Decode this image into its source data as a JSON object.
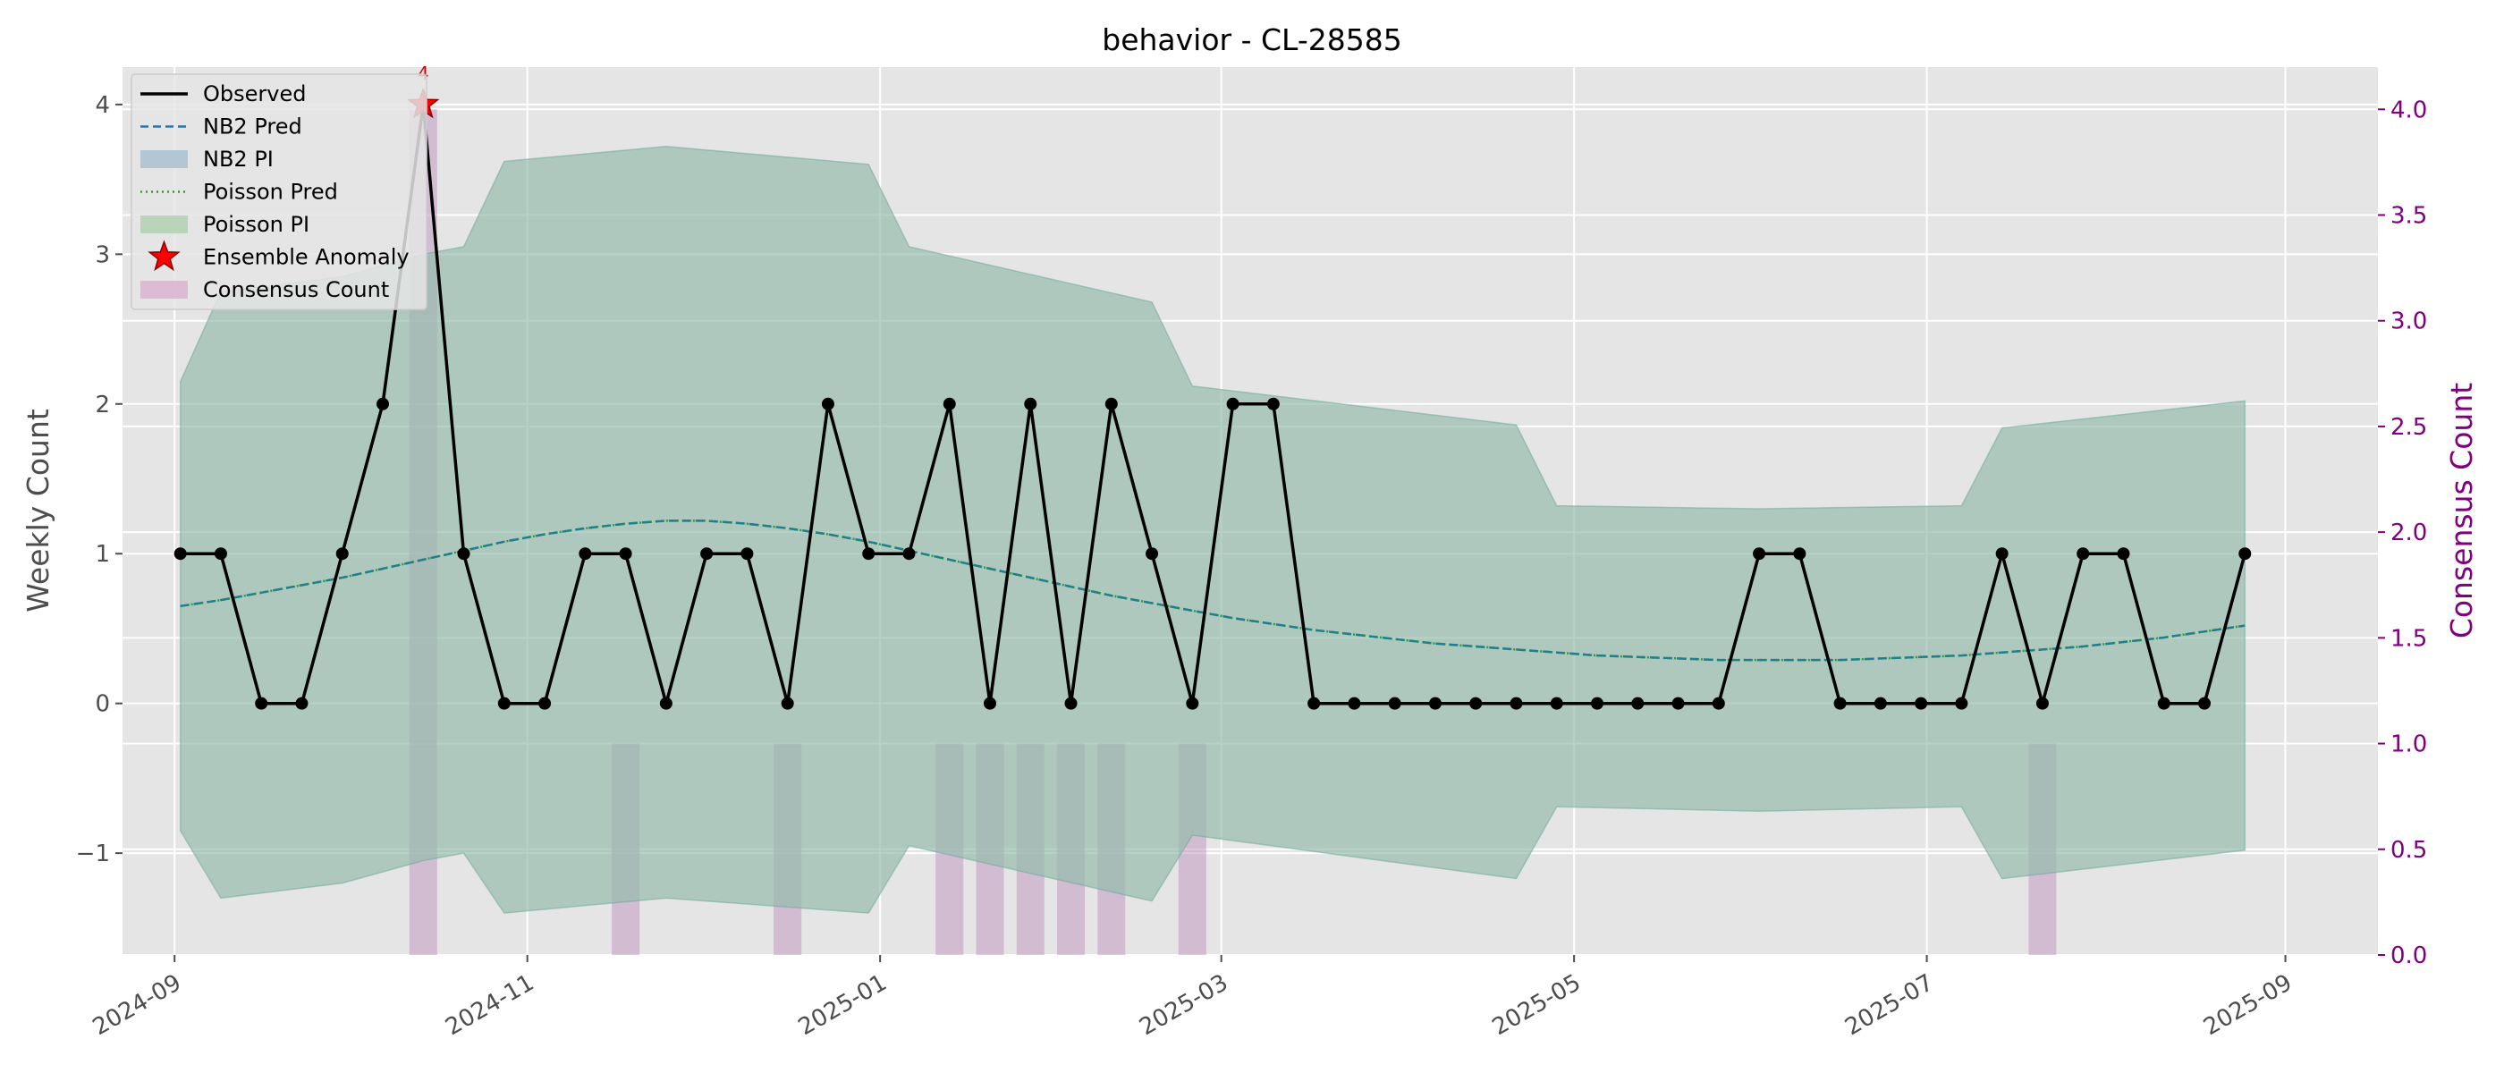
{
  "chart_data": {
    "type": "line",
    "title": "behavior - CL-28585",
    "xlabel": "",
    "ylabel": "Weekly Count",
    "ylabel_right": "Consensus Count",
    "ylim": [
      -1.68,
      4.25
    ],
    "ylim_right": [
      0.0,
      4.2
    ],
    "xlim": [
      "2024-08-23",
      "2025-09-17"
    ],
    "grid": true,
    "legend_position": "top-left",
    "x_ticks": [
      "2024-09",
      "2024-11",
      "2025-01",
      "2025-03",
      "2025-05",
      "2025-07",
      "2025-09"
    ],
    "x_tick_dates": [
      "2024-09-01",
      "2024-11-01",
      "2025-01-01",
      "2025-03-01",
      "2025-05-01",
      "2025-07-01",
      "2025-09-01"
    ],
    "y_ticks": [
      "−1",
      "0",
      "1",
      "2",
      "3",
      "4"
    ],
    "y_tick_values": [
      -1,
      0,
      1,
      2,
      3,
      4
    ],
    "y_ticks_right": [
      "0.0",
      "0.5",
      "1.0",
      "1.5",
      "2.0",
      "2.5",
      "3.0",
      "3.5",
      "4.0"
    ],
    "y_tick_values_right": [
      0.0,
      0.5,
      1.0,
      1.5,
      2.0,
      2.5,
      3.0,
      3.5,
      4.0
    ],
    "x": [
      "2024-09-02",
      "2024-09-09",
      "2024-09-16",
      "2024-09-23",
      "2024-09-30",
      "2024-10-07",
      "2024-10-14",
      "2024-10-21",
      "2024-10-28",
      "2024-11-04",
      "2024-11-11",
      "2024-11-18",
      "2024-11-25",
      "2024-12-02",
      "2024-12-09",
      "2024-12-16",
      "2024-12-23",
      "2024-12-30",
      "2025-01-06",
      "2025-01-13",
      "2025-01-20",
      "2025-01-27",
      "2025-02-03",
      "2025-02-10",
      "2025-02-17",
      "2025-02-24",
      "2025-03-03",
      "2025-03-10",
      "2025-03-17",
      "2025-03-24",
      "2025-03-31",
      "2025-04-07",
      "2025-04-14",
      "2025-04-21",
      "2025-04-28",
      "2025-05-05",
      "2025-05-12",
      "2025-05-19",
      "2025-05-26",
      "2025-06-02",
      "2025-06-09",
      "2025-06-16",
      "2025-06-23",
      "2025-06-30",
      "2025-07-07",
      "2025-07-14",
      "2025-07-21",
      "2025-07-28",
      "2025-08-04",
      "2025-08-11",
      "2025-08-18",
      "2025-08-25"
    ],
    "series": [
      {
        "name": "Observed",
        "color": "#000000",
        "values": [
          1,
          1,
          0,
          0,
          1,
          2,
          4,
          1,
          0,
          0,
          1,
          1,
          0,
          1,
          1,
          0,
          2,
          1,
          1,
          2,
          0,
          2,
          0,
          2,
          1,
          0,
          2,
          2,
          0,
          0,
          0,
          0,
          0,
          0,
          0,
          0,
          0,
          0,
          0,
          1,
          1,
          0,
          0,
          0,
          0,
          1,
          0,
          1,
          1,
          0,
          0,
          1
        ]
      },
      {
        "name": "NB2 Pred",
        "color": "#1f77b4",
        "values": [
          0.65,
          0.69,
          0.74,
          0.79,
          0.84,
          0.9,
          0.96,
          1.02,
          1.08,
          1.13,
          1.17,
          1.2,
          1.22,
          1.22,
          1.2,
          1.17,
          1.13,
          1.08,
          1.02,
          0.96,
          0.9,
          0.84,
          0.78,
          0.72,
          0.67,
          0.62,
          0.57,
          0.53,
          0.49,
          0.46,
          0.43,
          0.4,
          0.38,
          0.36,
          0.34,
          0.32,
          0.31,
          0.3,
          0.29,
          0.29,
          0.29,
          0.29,
          0.3,
          0.31,
          0.32,
          0.34,
          0.36,
          0.38,
          0.41,
          0.44,
          0.48,
          0.52
        ]
      },
      {
        "name": "Poisson Pred",
        "color": "#2ca02c",
        "values": [
          0.65,
          0.69,
          0.74,
          0.79,
          0.84,
          0.9,
          0.96,
          1.02,
          1.08,
          1.13,
          1.17,
          1.2,
          1.22,
          1.22,
          1.2,
          1.17,
          1.13,
          1.08,
          1.02,
          0.96,
          0.9,
          0.84,
          0.78,
          0.72,
          0.67,
          0.62,
          0.57,
          0.53,
          0.49,
          0.46,
          0.43,
          0.4,
          0.38,
          0.36,
          0.34,
          0.32,
          0.31,
          0.3,
          0.29,
          0.29,
          0.29,
          0.29,
          0.3,
          0.31,
          0.32,
          0.34,
          0.36,
          0.38,
          0.41,
          0.44,
          0.48,
          0.52
        ]
      }
    ],
    "prediction_interval": {
      "nb2_color": "#8fb1c9",
      "poisson_color": "#96c196",
      "x": [
        "2024-09-02",
        "2024-09-09",
        "2024-09-30",
        "2024-10-14",
        "2024-10-21",
        "2024-10-28",
        "2024-11-25",
        "2024-12-30",
        "2025-01-06",
        "2025-02-17",
        "2025-02-24",
        "2025-04-21",
        "2025-04-28",
        "2025-06-02",
        "2025-07-07",
        "2025-07-14",
        "2025-08-25"
      ],
      "upper": [
        2.15,
        2.75,
        2.85,
        3.0,
        3.05,
        3.62,
        3.72,
        3.6,
        3.05,
        2.68,
        2.12,
        1.86,
        1.32,
        1.3,
        1.32,
        1.84,
        2.02
      ],
      "lower": [
        -0.85,
        -1.3,
        -1.2,
        -1.05,
        -1.0,
        -1.4,
        -1.3,
        -1.4,
        -0.95,
        -1.32,
        -0.88,
        -1.17,
        -0.69,
        -0.72,
        -0.69,
        -1.17,
        -0.98
      ]
    },
    "anomalies": [
      {
        "x": "2024-10-14",
        "y": 4,
        "label": "4"
      }
    ],
    "consensus": {
      "name": "Consensus Count",
      "color": "#c39bc3",
      "x": [
        "2024-10-14",
        "2024-11-18",
        "2024-12-16",
        "2025-01-13",
        "2025-01-20",
        "2025-01-27",
        "2025-02-03",
        "2025-02-10",
        "2025-02-24",
        "2025-07-21"
      ],
      "values": [
        4,
        1,
        1,
        1,
        1,
        1,
        1,
        1,
        1,
        1
      ]
    },
    "legend": [
      {
        "name": "Observed",
        "kind": "line",
        "color": "#000000"
      },
      {
        "name": "NB2 Pred",
        "kind": "dashed",
        "color": "#1f77b4"
      },
      {
        "name": "NB2 PI",
        "kind": "patch",
        "color": "#b3c6d6"
      },
      {
        "name": "Poisson Pred",
        "kind": "dotted",
        "color": "#2ca02c"
      },
      {
        "name": "Poisson PI",
        "kind": "patch",
        "color": "#b9d4b9"
      },
      {
        "name": "Ensemble Anomaly",
        "kind": "star",
        "color": "#ff0000"
      },
      {
        "name": "Consensus Count",
        "kind": "patch",
        "color": "#dcbcd4"
      }
    ]
  }
}
